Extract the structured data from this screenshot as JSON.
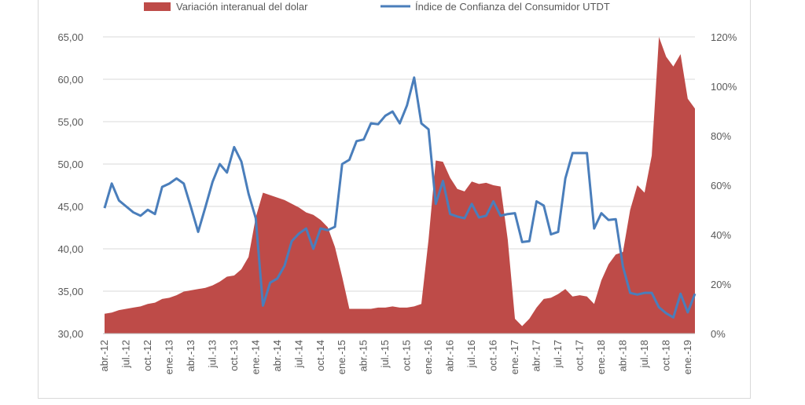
{
  "chart_data": {
    "type": "area+line",
    "legend": {
      "position": "top",
      "entries": [
        {
          "label": "Variación interanual del dolar",
          "kind": "area",
          "color": "#be4b48"
        },
        {
          "label": "Índice de Confianza del Consumidor UTDT",
          "kind": "line",
          "color": "#4a7ebb"
        }
      ]
    },
    "grid": true,
    "y_left": {
      "min": 30,
      "max": 65,
      "ticks": [
        "30,00",
        "35,00",
        "40,00",
        "45,00",
        "50,00",
        "55,00",
        "60,00",
        "65,00"
      ],
      "tick_values": [
        30,
        35,
        40,
        45,
        50,
        55,
        60,
        65
      ]
    },
    "y_right": {
      "min": 0,
      "max": 120,
      "ticks": [
        "0%",
        "20%",
        "40%",
        "60%",
        "80%",
        "100%",
        "120%"
      ],
      "tick_values": [
        0,
        20,
        40,
        60,
        80,
        100,
        120
      ]
    },
    "x_tick_labels": [
      "abr.-12",
      "jul.-12",
      "oct.-12",
      "ene.-13",
      "abr.-13",
      "jul.-13",
      "oct.-13",
      "ene.-14",
      "abr.-14",
      "jul.-14",
      "oct.-14",
      "ene.-15",
      "abr.-15",
      "jul.-15",
      "oct.-15",
      "ene.-16",
      "abr.-16",
      "jul.-16",
      "oct.-16",
      "ene.-17",
      "abr.-17",
      "jul.-17",
      "oct.-17",
      "ene.-18",
      "abr.-18",
      "jul.-18",
      "oct.-18",
      "ene.-19"
    ],
    "series": [
      {
        "name": "Variación interanual del dolar",
        "type": "area",
        "axis": "right",
        "color": "#be4b48",
        "start": "abr.-12",
        "values": [
          8,
          8.5,
          9.5,
          10,
          10.5,
          11,
          12,
          12.5,
          14,
          14.5,
          15.5,
          17,
          17.5,
          18,
          18.5,
          19.5,
          21,
          23,
          23.5,
          26,
          31,
          47,
          57,
          56,
          55,
          54,
          52.5,
          51,
          49,
          48,
          46,
          43,
          35,
          23,
          10,
          10,
          10,
          10,
          10.5,
          10.5,
          11,
          10.5,
          10.5,
          11,
          12,
          38,
          70,
          69.5,
          63,
          58.5,
          57.5,
          61.5,
          60.5,
          61,
          60,
          59.5,
          38,
          6,
          3,
          6,
          10.5,
          14,
          14.5,
          16,
          18,
          15,
          15.5,
          15,
          12,
          21.5,
          28,
          32,
          33,
          50,
          60,
          57,
          72,
          120,
          112,
          108,
          113,
          95,
          91
        ]
      },
      {
        "name": "Índice de Confianza del Consumidor UTDT",
        "type": "line",
        "axis": "left",
        "color": "#4a7ebb",
        "start": "abr.-12",
        "values": [
          44.8,
          47.7,
          45.7,
          45,
          44.3,
          43.9,
          44.6,
          44.1,
          47.3,
          47.7,
          48.3,
          47.7,
          44.9,
          42,
          44.9,
          47.9,
          50,
          49,
          52,
          50.3,
          46.5,
          43.6,
          33.3,
          36,
          36.5,
          38,
          40.9,
          41.8,
          42.4,
          40,
          42.4,
          42.2,
          42.6,
          50,
          50.5,
          52.7,
          52.9,
          54.8,
          54.7,
          55.7,
          56.2,
          54.8,
          56.9,
          60.2,
          54.8,
          54.1,
          45.3,
          48,
          44.1,
          43.8,
          43.6,
          45.3,
          43.7,
          43.9,
          45.6,
          43.9,
          44.1,
          44.2,
          40.8,
          40.9,
          45.6,
          45.1,
          41.7,
          42,
          48.3,
          51.3,
          51.3,
          51.3,
          42.4,
          44.2,
          43.4,
          43.5,
          37.9,
          34.8,
          34.6,
          34.8,
          34.8,
          33.1,
          32.4,
          31.9,
          34.7,
          32.5,
          34.7
        ]
      }
    ]
  }
}
